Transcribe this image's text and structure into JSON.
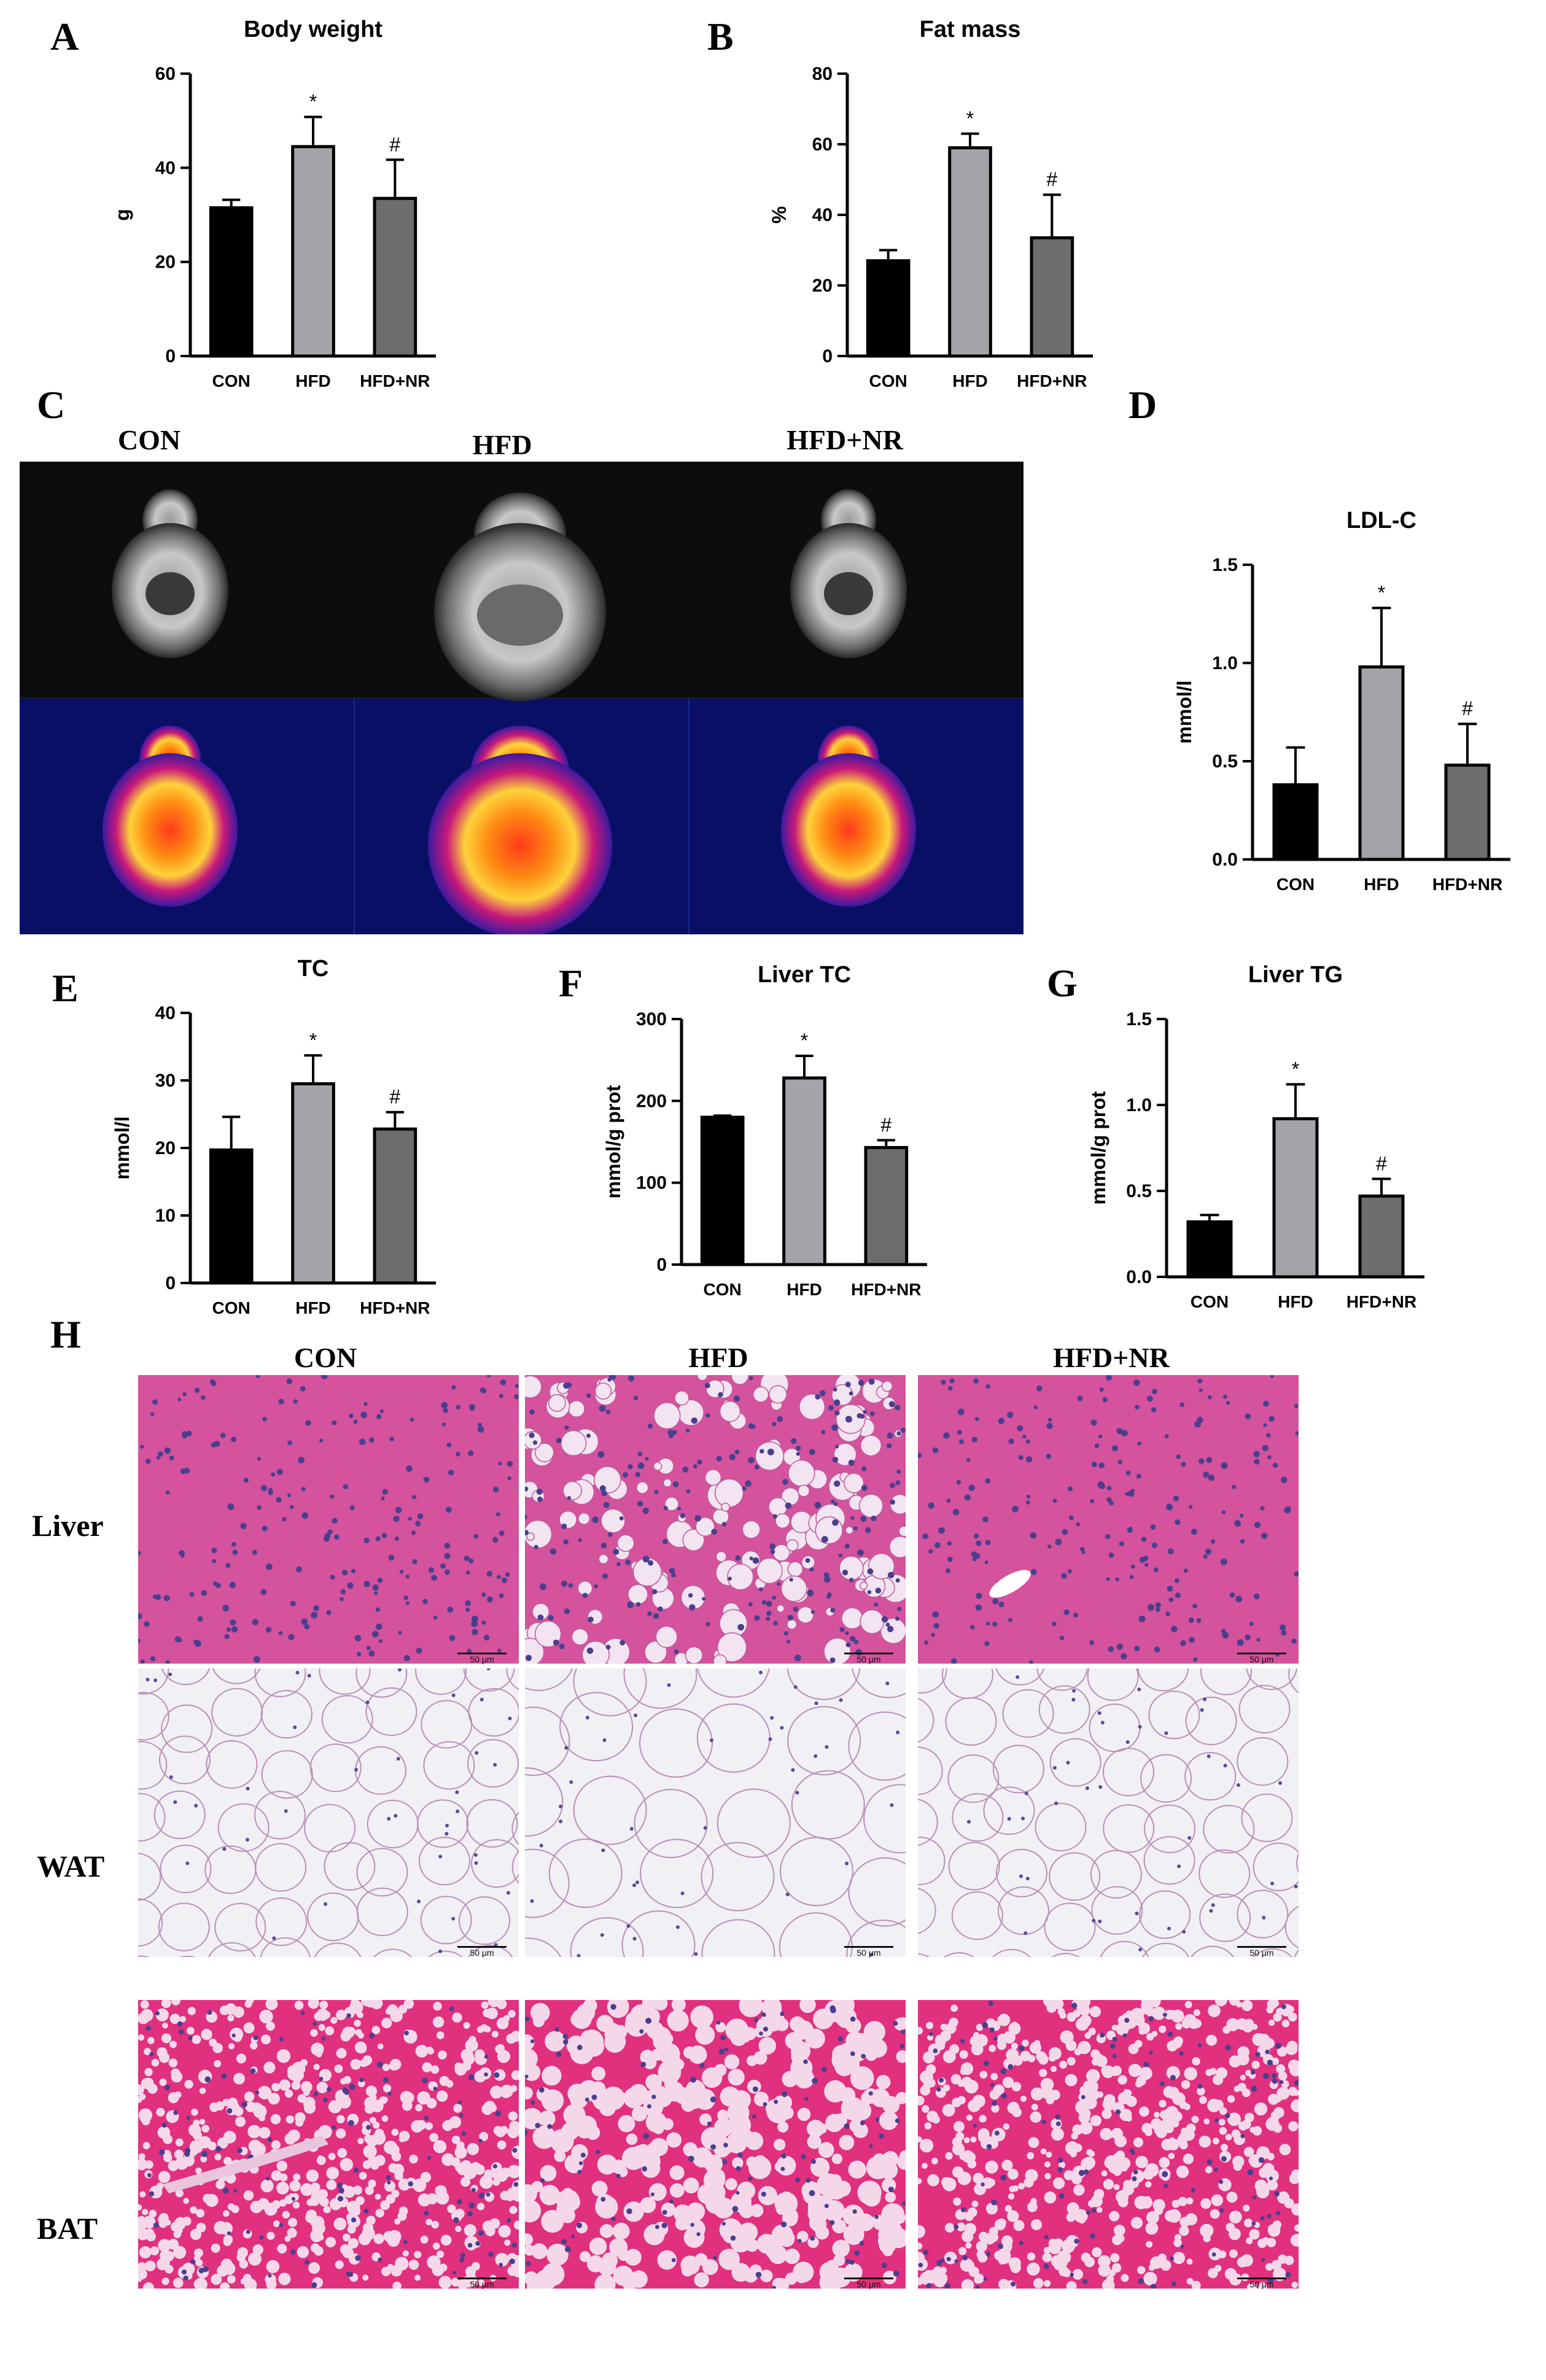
{
  "panels": {
    "A": "A",
    "B": "B",
    "C": "C",
    "D": "D",
    "E": "E",
    "F": "F",
    "G": "G",
    "H": "H"
  },
  "mri": {
    "columns": [
      "CON",
      "HFD",
      "HFD+NR"
    ]
  },
  "histology": {
    "columns": [
      "CON",
      "HFD",
      "HFD+NR"
    ],
    "rows": [
      "Liver",
      "WAT",
      "BAT"
    ],
    "scale_label": "50 μm"
  },
  "colors": {
    "con": "#000000",
    "hfd": "#a3a3a9",
    "hfdnr": "#6d6d6d",
    "liver": "#d5529c",
    "wat": "#f1f0f4",
    "bat": "#e0307e",
    "nucleus": "#4a3f8f"
  },
  "chart_data": [
    {
      "type": "bar",
      "title": "Body weight",
      "ylabel": "g",
      "ylim": [
        0,
        60
      ],
      "yticks": [
        0,
        20,
        40,
        60
      ],
      "categories": [
        "CON",
        "HFD",
        "HFD+NR"
      ],
      "values": [
        31.5,
        44.5,
        33.5
      ],
      "errors": [
        1.7,
        6.3,
        8.2
      ],
      "annotations": [
        "",
        "*",
        "#"
      ]
    },
    {
      "type": "bar",
      "title": "Fat  mass",
      "ylabel": "%",
      "ylim": [
        0,
        80
      ],
      "yticks": [
        0,
        20,
        40,
        60,
        80
      ],
      "categories": [
        "CON",
        "HFD",
        "HFD+NR"
      ],
      "values": [
        27,
        59,
        33.5
      ],
      "errors": [
        3,
        4,
        12.2
      ],
      "annotations": [
        "",
        "*",
        "#"
      ]
    },
    {
      "type": "bar",
      "title": "LDL-C",
      "ylabel": "mmol/l",
      "ylim": [
        0,
        1.5
      ],
      "yticks": [
        "0.0",
        "0.5",
        "1.0",
        "1.5"
      ],
      "categories": [
        "CON",
        "HFD",
        "HFD+NR"
      ],
      "values": [
        0.38,
        0.98,
        0.48
      ],
      "errors": [
        0.19,
        0.3,
        0.21
      ],
      "annotations": [
        "",
        "*",
        "#"
      ]
    },
    {
      "type": "bar",
      "title": "TC",
      "ylabel": "mmol/l",
      "ylim": [
        0,
        40
      ],
      "yticks": [
        0,
        10,
        20,
        30,
        40
      ],
      "categories": [
        "CON",
        "HFD",
        "HFD+NR"
      ],
      "values": [
        19.7,
        29.5,
        22.8
      ],
      "errors": [
        4.9,
        4.2,
        2.5
      ],
      "annotations": [
        "",
        "*",
        "#"
      ]
    },
    {
      "type": "bar",
      "title": "Liver TC",
      "ylabel": "mmol/g prot",
      "ylim": [
        0,
        300
      ],
      "yticks": [
        0,
        100,
        200,
        300
      ],
      "categories": [
        "CON",
        "HFD",
        "HFD+NR"
      ],
      "values": [
        180,
        228,
        143
      ],
      "errors": [
        2,
        27,
        9
      ],
      "annotations": [
        "",
        "*",
        "#"
      ]
    },
    {
      "type": "bar",
      "title": "Liver TG",
      "ylabel": "mmol/g prot",
      "ylim": [
        0,
        1.5
      ],
      "yticks": [
        "0.0",
        "0.5",
        "1.0",
        "1.5"
      ],
      "categories": [
        "CON",
        "HFD",
        "HFD+NR"
      ],
      "values": [
        0.32,
        0.92,
        0.47
      ],
      "errors": [
        0.04,
        0.2,
        0.1
      ],
      "annotations": [
        "",
        "*",
        "#"
      ]
    }
  ]
}
